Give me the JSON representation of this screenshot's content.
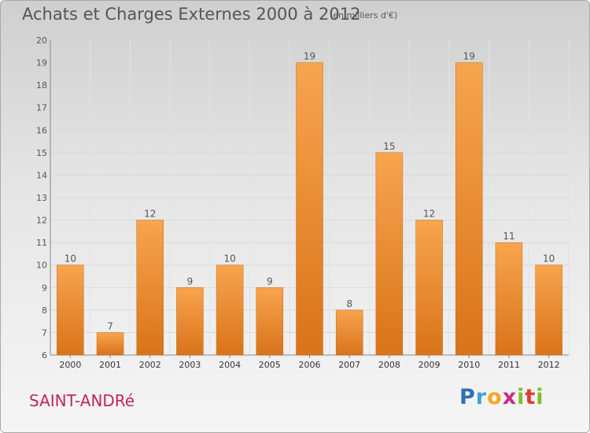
{
  "header": {
    "title": "Achats et Charges Externes 2000 à 2012",
    "subtitle": "(en milliers d'€)"
  },
  "footer": {
    "commune": "SAINT-ANDRé",
    "logo_letters": [
      "P",
      "r",
      "o",
      "x",
      "i",
      "t",
      "i"
    ],
    "logo_colors": [
      "#2f6fb5",
      "#3aa0d8",
      "#f5a623",
      "#cc2b8a",
      "#7bbf2a",
      "#e03c31",
      "#7bbf2a"
    ]
  },
  "chart_data": {
    "type": "bar",
    "title": "Achats et Charges Externes 2000 à 2012",
    "subtitle": "(en milliers d'€)",
    "categories": [
      "2000",
      "2001",
      "2002",
      "2003",
      "2004",
      "2005",
      "2006",
      "2007",
      "2008",
      "2009",
      "2010",
      "2011",
      "2012"
    ],
    "values": [
      10,
      7,
      12,
      9,
      10,
      9,
      19,
      8,
      15,
      12,
      19,
      11,
      10
    ],
    "ylim": [
      6,
      20
    ],
    "yticks": [
      6,
      7,
      8,
      9,
      10,
      11,
      12,
      13,
      14,
      15,
      16,
      17,
      18,
      19,
      20
    ],
    "grid": true,
    "bar_color": "#f0922e"
  }
}
